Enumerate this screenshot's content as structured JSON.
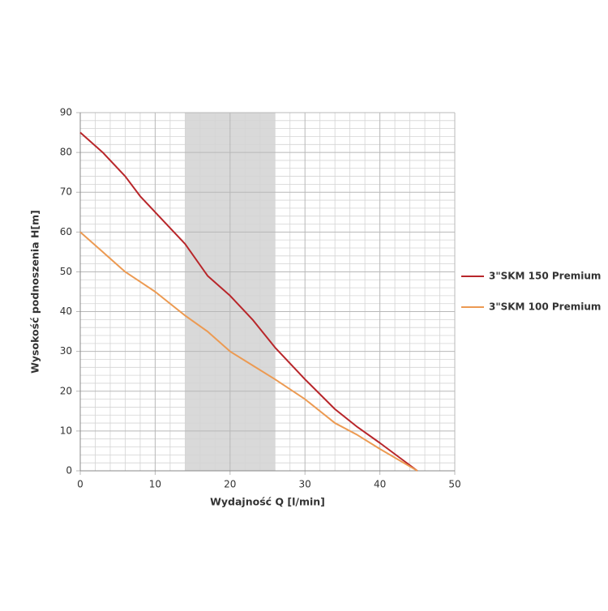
{
  "chart_data": {
    "type": "line",
    "x_label": "Wydajność Q [l/min]",
    "y_label": "Wysokość podnoszenia H[m]",
    "x": [
      0,
      3,
      6,
      8,
      10,
      14,
      17,
      20,
      23,
      26,
      30,
      34,
      37,
      40,
      45
    ],
    "series": [
      {
        "name": "3\"SKM 150 Premium",
        "color": "#b8262a",
        "values": [
          85,
          80,
          74,
          69,
          65,
          57,
          49,
          44,
          38,
          31,
          23,
          15.5,
          11,
          7,
          0
        ]
      },
      {
        "name": "3\"SKM 100 Premium",
        "color": "#ec9a52",
        "values": [
          60,
          55,
          50,
          47.5,
          45,
          39,
          35,
          30,
          26.5,
          23,
          18,
          12,
          9,
          5.5,
          0
        ]
      }
    ],
    "shaded_range": [
      14,
      26
    ],
    "xlim": [
      0,
      50
    ],
    "xticks": [
      0,
      10,
      20,
      30,
      40,
      50
    ],
    "ylim": [
      0,
      90
    ],
    "yticks": [
      0,
      10,
      20,
      30,
      40,
      50,
      60,
      70,
      80,
      90
    ],
    "grid": true,
    "legend": "right"
  }
}
